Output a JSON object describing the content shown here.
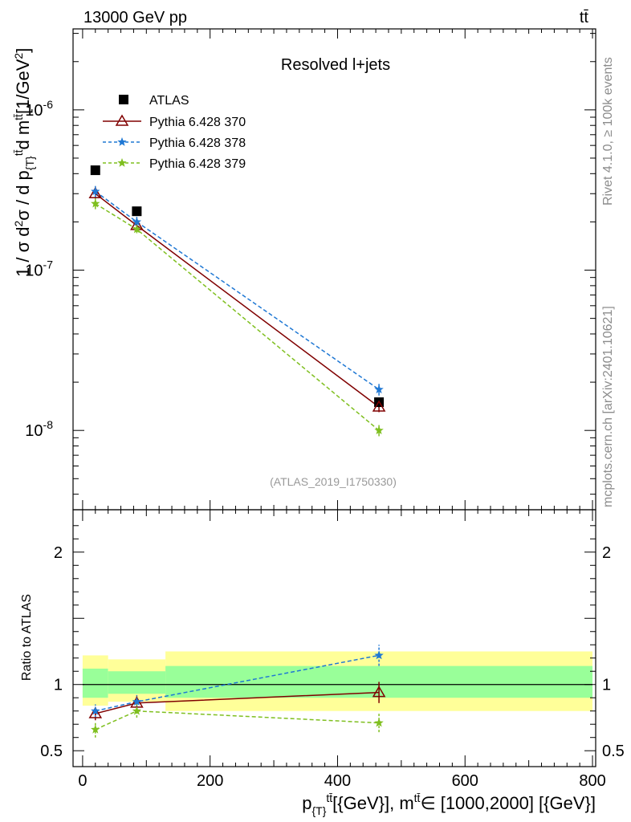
{
  "header": {
    "energy_label": "13000 GeV pp",
    "process_label": "tt̄",
    "plot_title": "Resolved l+jets",
    "analysis_id": "(ATLAS_2019_I1750330)",
    "side_text_rivet": "Rivet 4.1.0, ≥ 100k events",
    "side_text_source": "mcplots.cern.ch [arXiv:2401.10621]"
  },
  "colors": {
    "data": "#000000",
    "band_inner": "#99ff99",
    "band_outer": "#ffff99",
    "pythia_370": "#800000",
    "pythia_378": "#1f78d4",
    "pythia_379": "#7fbf1f"
  },
  "chart_data": [
    {
      "type": "scatter",
      "panel": "main",
      "yscale": "log",
      "ylabel": "1 / σ d²σ / d p_{T}^{tt̄} d m^{tt̄} [1/GeV²]",
      "ylim": [
        3.2e-09,
        3.2e-06
      ],
      "xlim": [
        -15,
        805
      ],
      "y_tick_labels": [
        "10^{-8}",
        "10^{-7}",
        "10^{-6}"
      ],
      "legend_position": "top-left",
      "x_bin_edges": [
        0,
        40,
        130,
        800
      ],
      "series": [
        {
          "name": "ATLAS",
          "key": "data",
          "x": [
            20,
            85,
            465
          ],
          "y": [
            4.2e-07,
            2.33e-07,
            1.5e-08
          ],
          "yerr": [
            2e-09,
            1e-08,
            8e-10
          ],
          "marker": "square",
          "line": "none"
        },
        {
          "name": "Pythia 6.428 370",
          "key": "pythia_370",
          "x": [
            20,
            85,
            465
          ],
          "y": [
            3e-07,
            1.9e-07,
            1.4e-08
          ],
          "yerr": [
            2e-08,
            1e-08,
            1e-09
          ],
          "marker": "triangle-open",
          "line": "solid"
        },
        {
          "name": "Pythia 6.428 378",
          "key": "pythia_378",
          "x": [
            20,
            85,
            465
          ],
          "y": [
            3.1e-07,
            2e-07,
            1.8e-08
          ],
          "yerr": [
            2.5e-08,
            1.5e-08,
            1.5e-09
          ],
          "marker": "star",
          "line": "dashed"
        },
        {
          "name": "Pythia 6.428 379",
          "key": "pythia_379",
          "x": [
            20,
            85,
            465
          ],
          "y": [
            2.6e-07,
            1.8e-07,
            1e-08
          ],
          "yerr": [
            2e-08,
            1e-08,
            8e-10
          ],
          "marker": "star",
          "line": "dashed"
        }
      ]
    },
    {
      "type": "scatter",
      "panel": "ratio",
      "ylabel": "Ratio to ATLAS",
      "xlabel": "p_{T}^{tt̄} [{GeV}], m^{tt̄} ∈ [1000,2000] [{GeV}]",
      "ylim": [
        0.38,
        2.32
      ],
      "xlim": [
        -15,
        805
      ],
      "y_ticks": [
        0.5,
        1,
        2
      ],
      "y_tick_labels": [
        "0.5",
        "1",
        "2"
      ],
      "x_ticks": [
        0,
        200,
        400,
        600,
        800
      ],
      "x_tick_labels": [
        "0",
        "200",
        "400",
        "600",
        "800"
      ],
      "bands": [
        {
          "x0": 0,
          "x1": 40,
          "inner": [
            0.9,
            1.12
          ],
          "outer": [
            0.84,
            1.22
          ]
        },
        {
          "x0": 40,
          "x1": 130,
          "inner": [
            0.93,
            1.1
          ],
          "outer": [
            0.87,
            1.19
          ]
        },
        {
          "x0": 130,
          "x1": 800,
          "inner": [
            0.9,
            1.14
          ],
          "outer": [
            0.8,
            1.25
          ]
        }
      ],
      "series": [
        {
          "name": "Pythia 6.428 370",
          "key": "pythia_370",
          "x": [
            20,
            85,
            465
          ],
          "y": [
            0.78,
            0.86,
            0.94
          ],
          "yerr": [
            0.05,
            0.05,
            0.08
          ]
        },
        {
          "name": "Pythia 6.428 378",
          "key": "pythia_378",
          "x": [
            20,
            85,
            465
          ],
          "y": [
            0.8,
            0.87,
            1.22
          ],
          "yerr": [
            0.05,
            0.05,
            0.08
          ]
        },
        {
          "name": "Pythia 6.428 379",
          "key": "pythia_379",
          "x": [
            20,
            85,
            465
          ],
          "y": [
            0.66,
            0.8,
            0.71
          ],
          "yerr": [
            0.06,
            0.05,
            0.07
          ]
        }
      ]
    }
  ]
}
